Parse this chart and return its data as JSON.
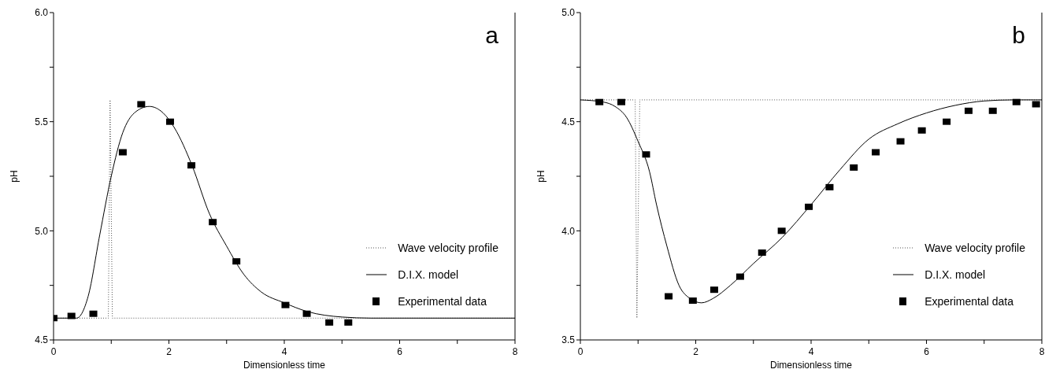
{
  "chart_data": [
    {
      "type": "line",
      "annotations": [
        "a"
      ],
      "xlabel": "Dimensionless time",
      "ylabel": "pH",
      "xlim": [
        0,
        8
      ],
      "ylim": [
        4.5,
        6.0
      ],
      "xticks": [
        0,
        {
          "value": 1,
          "label": null
        },
        2,
        {
          "value": 3,
          "label": null
        },
        4,
        {
          "value": 5,
          "label": null
        },
        6,
        {
          "value": 7,
          "label": null
        },
        8
      ],
      "yticks": [
        4.5,
        {
          "value": 4.75,
          "label": null
        },
        {
          "value": 5.0,
          "label": "5.0"
        },
        {
          "value": 5.25,
          "label": null
        },
        5.5,
        {
          "value": 5.75,
          "label": null
        },
        {
          "value": 6.0,
          "label": "6.0"
        }
      ],
      "grid": false,
      "legend": "right",
      "series": [
        {
          "name": "Wave velocity profile",
          "type": "line",
          "color": "#555555",
          "line_style": "dotted",
          "marker": "none",
          "x": [
            0,
            0.95,
            0.98,
            1.02,
            8
          ],
          "values": [
            4.6,
            4.6,
            5.6,
            4.6,
            4.6
          ]
        },
        {
          "name": "D.I.X. model",
          "type": "line",
          "color": "#000000",
          "line_style": "solid",
          "marker": "none",
          "x": [
            0,
            0.4,
            0.6,
            0.8,
            1.0,
            1.2,
            1.4,
            1.66,
            1.9,
            2.1,
            2.4,
            2.7,
            3.0,
            3.3,
            3.6,
            4.0,
            4.4,
            5.0,
            5.5,
            8
          ],
          "values": [
            4.6,
            4.6,
            4.7,
            4.98,
            5.25,
            5.45,
            5.54,
            5.57,
            5.54,
            5.47,
            5.3,
            5.08,
            4.93,
            4.8,
            4.72,
            4.67,
            4.63,
            4.605,
            4.6,
            4.6
          ]
        },
        {
          "name": "Experimental data",
          "type": "scatter",
          "color": "#000000",
          "marker": "square",
          "x": [
            0,
            0.31,
            0.69,
            1.2,
            1.52,
            2.02,
            2.39,
            2.76,
            3.17,
            4.02,
            4.39,
            4.78,
            5.11
          ],
          "values": [
            4.6,
            4.61,
            4.62,
            5.36,
            5.58,
            5.5,
            5.3,
            5.04,
            4.86,
            4.66,
            4.62,
            4.58,
            4.58
          ]
        }
      ]
    },
    {
      "type": "line",
      "annotations": [
        "b"
      ],
      "xlabel": "Dimensionless time",
      "ylabel": "pH",
      "xlim": [
        0,
        8
      ],
      "ylim": [
        3.5,
        5.0
      ],
      "xticks": [
        0,
        {
          "value": 1,
          "label": null
        },
        2,
        {
          "value": 3,
          "label": null
        },
        4,
        {
          "value": 5,
          "label": null
        },
        6,
        {
          "value": 7,
          "label": null
        },
        8
      ],
      "yticks": [
        3.5,
        {
          "value": 3.75,
          "label": null
        },
        {
          "value": 4.0,
          "label": "4.0"
        },
        {
          "value": 4.25,
          "label": null
        },
        4.5,
        {
          "value": 4.75,
          "label": null
        },
        {
          "value": 5.0,
          "label": "5.0"
        }
      ],
      "grid": false,
      "legend": "right",
      "series": [
        {
          "name": "Wave velocity profile",
          "type": "line",
          "color": "#555555",
          "line_style": "dotted",
          "marker": "none",
          "x": [
            0,
            0.95,
            0.98,
            1.03,
            8
          ],
          "values": [
            4.6,
            4.6,
            3.6,
            4.6,
            4.6
          ]
        },
        {
          "name": "D.I.X. model",
          "type": "line",
          "color": "#000000",
          "line_style": "solid",
          "marker": "none",
          "x": [
            0,
            0.4,
            0.6,
            0.8,
            1.0,
            1.2,
            1.32,
            1.5,
            1.71,
            1.9,
            2.1,
            2.3,
            2.6,
            3.0,
            3.5,
            4.0,
            4.5,
            5.0,
            5.5,
            6.0,
            6.5,
            7.0,
            7.5,
            8
          ],
          "values": [
            4.6,
            4.59,
            4.57,
            4.52,
            4.41,
            4.27,
            4.12,
            3.93,
            3.75,
            3.69,
            3.67,
            3.69,
            3.75,
            3.85,
            3.97,
            4.12,
            4.28,
            4.42,
            4.49,
            4.54,
            4.575,
            4.595,
            4.6,
            4.6
          ]
        },
        {
          "name": "Experimental data",
          "type": "scatter",
          "color": "#000000",
          "marker": "square",
          "x": [
            0.33,
            0.71,
            1.14,
            1.53,
            1.95,
            2.32,
            2.77,
            3.15,
            3.49,
            3.96,
            4.32,
            4.74,
            5.12,
            5.55,
            5.92,
            6.35,
            6.73,
            7.15,
            7.56,
            7.9
          ],
          "values": [
            4.59,
            4.59,
            4.35,
            3.7,
            3.68,
            3.73,
            3.79,
            3.9,
            4.0,
            4.11,
            4.2,
            4.29,
            4.36,
            4.41,
            4.46,
            4.5,
            4.55,
            4.55,
            4.59,
            4.58
          ]
        }
      ]
    }
  ]
}
